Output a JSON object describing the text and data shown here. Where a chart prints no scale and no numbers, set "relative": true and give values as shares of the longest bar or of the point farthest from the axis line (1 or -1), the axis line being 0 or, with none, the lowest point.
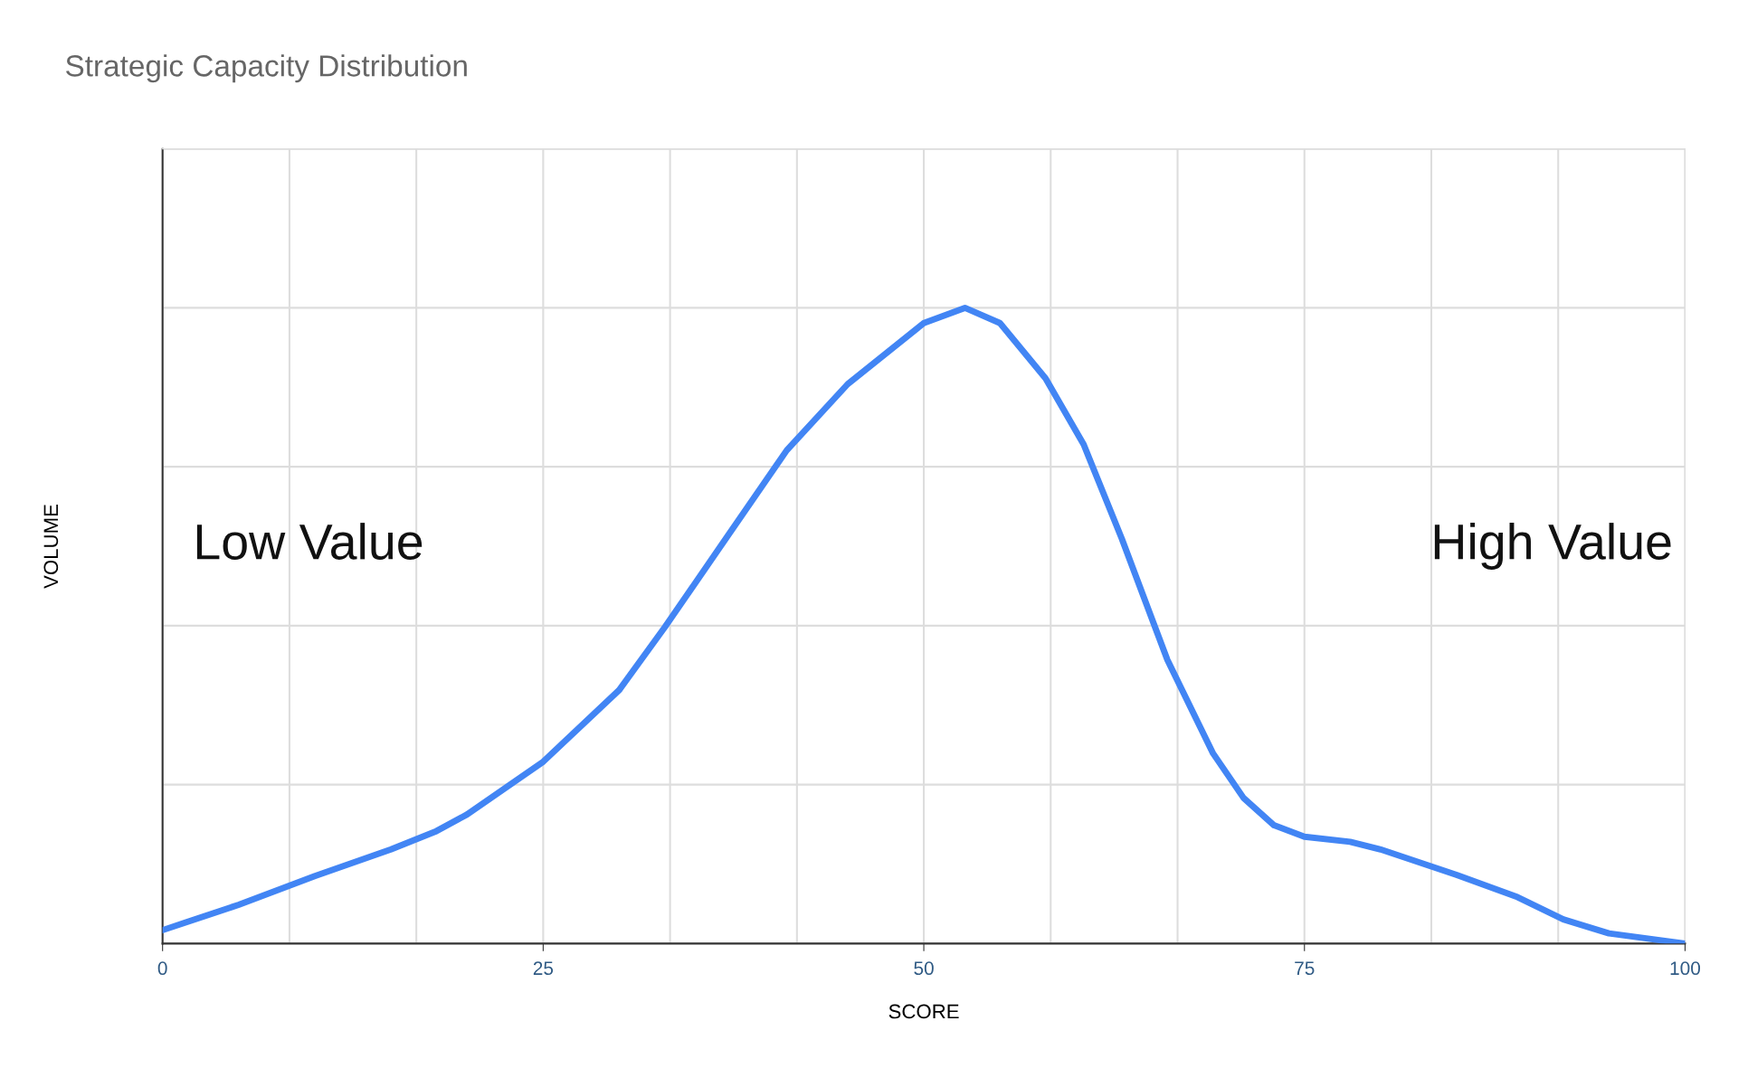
{
  "chart_data": {
    "type": "line",
    "title": "Strategic Capacity Distribution",
    "xlabel": "SCORE",
    "ylabel": "VOLUME",
    "relative": true,
    "xlim": [
      0,
      100
    ],
    "xticks": [
      0,
      25,
      50,
      75,
      100
    ],
    "grid": true,
    "marker": "none",
    "line_style": "solid",
    "annotations": [
      "Low Value",
      "High Value"
    ],
    "series": [
      {
        "color": "#4285f4",
        "x": [
          0,
          5,
          10,
          15,
          18,
          20,
          25,
          30,
          33,
          37,
          41,
          45,
          50,
          52.7,
          55,
          58,
          60.5,
          63,
          66,
          69,
          71,
          73,
          75,
          78,
          80,
          85,
          89,
          92,
          95,
          100
        ],
        "values": [
          0.021,
          0.061,
          0.106,
          0.148,
          0.177,
          0.203,
          0.286,
          0.399,
          0.498,
          0.637,
          0.776,
          0.88,
          0.976,
          1.0,
          0.976,
          0.889,
          0.785,
          0.637,
          0.446,
          0.299,
          0.229,
          0.186,
          0.168,
          0.16,
          0.148,
          0.108,
          0.073,
          0.038,
          0.016,
          0.0
        ]
      }
    ]
  }
}
